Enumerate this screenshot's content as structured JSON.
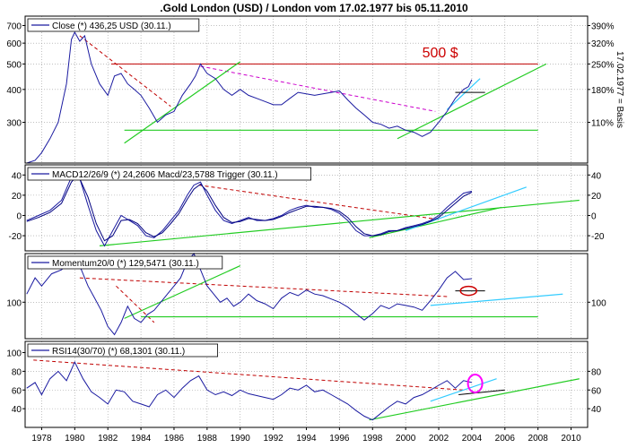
{
  "title": ".Gold London (USD) / London vom 17.02.1977 bis 05.11.2010",
  "x_axis": {
    "ticks": [
      "1978",
      "1980",
      "1982",
      "1984",
      "1986",
      "1988",
      "1990",
      "1992",
      "1994",
      "1996",
      "1998",
      "2000",
      "2002",
      "2004",
      "2006",
      "2008",
      "2010"
    ],
    "range": [
      1977.0,
      2011.0
    ]
  },
  "colors": {
    "price_line": "#1a1aa0",
    "trigger_line": "#000080",
    "red_dash": "#c00000",
    "magenta_dash": "#cc00cc",
    "green": "#22cc22",
    "cyan": "#33ccff",
    "grid": "#999999",
    "frame": "#000000",
    "annotation_red": "#cc0000",
    "annotation_magenta": "#ff00ff"
  },
  "chart_data": [
    {
      "type": "line",
      "panel": "price",
      "legend": "Close (*) 436,25 USD (30.11.)",
      "annotation": "500 $",
      "left_ticks": [
        "700",
        "600",
        "500",
        "400",
        "300"
      ],
      "left_tick_values": [
        700,
        600,
        500,
        400,
        300
      ],
      "right_ticks": [
        "390%",
        "320%",
        "250%",
        "180%",
        "110%"
      ],
      "right_tick_values": [
        700,
        600,
        500,
        400,
        300
      ],
      "right_axis_label": "17.02.1977 = Basis",
      "y_scale": "log",
      "ylim": [
        210,
        760
      ],
      "series": [
        {
          "x": [
            1977.1,
            1977.6,
            1978.0,
            1978.5,
            1979.0,
            1979.5,
            1979.8,
            1980.0,
            1980.3,
            1980.6,
            1981.0,
            1981.5,
            1982.0,
            1982.4,
            1982.8,
            1983.2,
            1983.6,
            1984.0,
            1984.5,
            1985.0,
            1985.5,
            1986.0,
            1986.5,
            1987.0,
            1987.3,
            1987.6,
            1988.0,
            1988.5,
            1989.0,
            1989.5,
            1990.0,
            1990.5,
            1991.0,
            1991.5,
            1992.0,
            1992.5,
            1993.0,
            1993.5,
            1994.0,
            1994.5,
            1995.0,
            1995.5,
            1996.0,
            1996.5,
            1997.0,
            1997.5,
            1998.0,
            1998.5,
            1999.0,
            1999.5,
            2000.0,
            2000.5,
            2001.0,
            2001.5,
            2002.0,
            2002.5,
            2003.0,
            2003.5,
            2003.8,
            2004.0
          ],
          "values": [
            210,
            215,
            230,
            260,
            300,
            420,
            620,
            660,
            610,
            640,
            500,
            420,
            380,
            450,
            460,
            420,
            400,
            380,
            340,
            300,
            320,
            330,
            380,
            420,
            450,
            500,
            460,
            440,
            400,
            380,
            400,
            380,
            370,
            360,
            350,
            350,
            370,
            390,
            385,
            380,
            385,
            390,
            395,
            365,
            340,
            320,
            300,
            295,
            285,
            290,
            280,
            275,
            265,
            275,
            300,
            330,
            370,
            400,
            410,
            436
          ]
        }
      ],
      "trendlines": [
        {
          "style": "red_dash",
          "points": [
            [
              1980.3,
              640
            ],
            [
              1985.8,
              345
            ]
          ]
        },
        {
          "style": "red_solid",
          "points": [
            [
              1982.2,
              500
            ],
            [
              2008.0,
              500
            ]
          ]
        },
        {
          "style": "magenta_dash",
          "points": [
            [
              1987.6,
              490
            ],
            [
              2001.8,
              330
            ]
          ]
        },
        {
          "style": "green",
          "points": [
            [
              1983.0,
              250
            ],
            [
              1990.0,
              510
            ]
          ]
        },
        {
          "style": "green",
          "points": [
            [
              1983.0,
              280
            ],
            [
              2008.0,
              280
            ]
          ]
        },
        {
          "style": "green",
          "points": [
            [
              1999.5,
              260
            ],
            [
              2008.5,
              500
            ]
          ]
        },
        {
          "style": "cyan",
          "points": [
            [
              2002.5,
              335
            ],
            [
              2004.5,
              440
            ]
          ]
        },
        {
          "style": "black",
          "points": [
            [
              2003.0,
              390
            ],
            [
              2004.8,
              390
            ]
          ]
        }
      ]
    },
    {
      "type": "line",
      "panel": "macd",
      "legend": "MACD12/26/9 (*) 24,2606 Macd/23,5788 Trigger (30.11.)",
      "left_ticks": [
        "40",
        "20",
        "0",
        "-20"
      ],
      "left_tick_values": [
        40,
        20,
        0,
        -20
      ],
      "right_ticks": [
        "40",
        "20",
        "0",
        "-20"
      ],
      "right_tick_values": [
        40,
        20,
        0,
        -20
      ],
      "ylim": [
        -35,
        50
      ],
      "series": [
        {
          "x": [
            1977.1,
            1977.8,
            1978.5,
            1979.2,
            1979.8,
            1980.2,
            1980.8,
            1981.3,
            1981.8,
            1982.3,
            1982.8,
            1983.3,
            1983.8,
            1984.3,
            1984.8,
            1985.3,
            1985.8,
            1986.3,
            1986.8,
            1987.2,
            1987.6,
            1988.0,
            1988.5,
            1989.0,
            1989.5,
            1990.0,
            1990.5,
            1991.0,
            1991.5,
            1992.0,
            1992.5,
            1993.0,
            1993.5,
            1994.0,
            1994.5,
            1995.0,
            1995.5,
            1996.0,
            1996.5,
            1997.0,
            1997.5,
            1998.0,
            1998.5,
            1999.0,
            1999.5,
            2000.0,
            2000.5,
            2001.0,
            2001.5,
            2002.0,
            2002.5,
            2003.0,
            2003.5,
            2004.0
          ],
          "values": [
            -5,
            0,
            5,
            15,
            38,
            42,
            10,
            -15,
            -30,
            -15,
            0,
            -5,
            -10,
            -20,
            -22,
            -15,
            -5,
            5,
            20,
            30,
            33,
            20,
            5,
            -5,
            -8,
            -5,
            -2,
            -5,
            -5,
            -3,
            0,
            5,
            8,
            10,
            8,
            8,
            6,
            2,
            -5,
            -15,
            -20,
            -20,
            -18,
            -15,
            -15,
            -12,
            -10,
            -8,
            -5,
            0,
            8,
            15,
            22,
            24
          ]
        },
        {
          "x": [
            1977.1,
            1977.8,
            1978.5,
            1979.2,
            1979.8,
            1980.2,
            1980.8,
            1981.3,
            1981.8,
            1982.3,
            1982.8,
            1983.3,
            1983.8,
            1984.3,
            1984.8,
            1985.3,
            1985.8,
            1986.3,
            1986.8,
            1987.2,
            1987.6,
            1988.0,
            1988.5,
            1989.0,
            1989.5,
            1990.0,
            1990.5,
            1991.0,
            1991.5,
            1992.0,
            1992.5,
            1993.0,
            1993.5,
            1994.0,
            1994.5,
            1995.0,
            1995.5,
            1996.0,
            1996.5,
            1997.0,
            1997.5,
            1998.0,
            1998.5,
            1999.0,
            1999.5,
            2000.0,
            2000.5,
            2001.0,
            2001.5,
            2002.0,
            2002.5,
            2003.0,
            2003.5,
            2004.0
          ],
          "values": [
            -6,
            -2,
            3,
            12,
            33,
            40,
            18,
            -8,
            -25,
            -20,
            -5,
            -4,
            -8,
            -17,
            -21,
            -17,
            -8,
            2,
            16,
            26,
            31,
            24,
            10,
            -2,
            -7,
            -6,
            -3,
            -4,
            -5,
            -4,
            -1,
            3,
            6,
            9,
            9,
            8,
            7,
            4,
            -2,
            -11,
            -18,
            -20,
            -19,
            -16,
            -15,
            -13,
            -11,
            -9,
            -6,
            -2,
            5,
            12,
            19,
            23
          ]
        }
      ],
      "trendlines": [
        {
          "style": "red_dash",
          "points": [
            [
              1987.5,
              30
            ],
            [
              2002.0,
              -4
            ]
          ]
        },
        {
          "style": "green",
          "points": [
            [
              1981.5,
              -30
            ],
            [
              2010.5,
              15
            ]
          ]
        },
        {
          "style": "green",
          "points": [
            [
              1997.8,
              -22
            ],
            [
              2005.8,
              8
            ]
          ]
        },
        {
          "style": "cyan",
          "points": [
            [
              2000.0,
              -15
            ],
            [
              2007.3,
              28
            ]
          ]
        }
      ]
    },
    {
      "type": "line",
      "panel": "momentum",
      "legend": "Momentum20/0 (*) 129,5471 (30.11.)",
      "left_ticks": [
        "100"
      ],
      "left_tick_values": [
        100
      ],
      "right_ticks": [
        "100"
      ],
      "right_tick_values": [
        100
      ],
      "ylim": [
        55,
        160
      ],
      "series": [
        {
          "x": [
            1977.1,
            1977.6,
            1978.0,
            1978.6,
            1979.2,
            1979.7,
            1980.0,
            1980.4,
            1980.8,
            1981.2,
            1981.6,
            1982.0,
            1982.4,
            1982.8,
            1983.2,
            1983.6,
            1984.0,
            1984.4,
            1984.8,
            1985.2,
            1985.6,
            1986.0,
            1986.4,
            1986.8,
            1987.2,
            1987.6,
            1988.0,
            1988.4,
            1988.8,
            1989.2,
            1989.6,
            1990.0,
            1990.5,
            1991.0,
            1991.5,
            1992.0,
            1992.5,
            1993.0,
            1993.5,
            1994.0,
            1994.5,
            1995.0,
            1995.5,
            1996.0,
            1996.5,
            1997.0,
            1997.5,
            1998.0,
            1998.5,
            1999.0,
            1999.5,
            2000.0,
            2000.5,
            2001.0,
            2001.5,
            2002.0,
            2002.5,
            2003.0,
            2003.5,
            2004.0
          ],
          "values": [
            110,
            130,
            120,
            135,
            140,
            150,
            155,
            140,
            120,
            105,
            90,
            70,
            60,
            75,
            95,
            80,
            75,
            85,
            90,
            100,
            110,
            120,
            130,
            150,
            160,
            140,
            120,
            110,
            100,
            105,
            95,
            100,
            110,
            102,
            98,
            92,
            105,
            112,
            108,
            115,
            110,
            108,
            104,
            100,
            94,
            86,
            78,
            86,
            96,
            92,
            98,
            96,
            94,
            90,
            102,
            115,
            130,
            138,
            128,
            129
          ]
        }
      ],
      "trendlines": [
        {
          "style": "red_dash",
          "points": [
            [
              1980.3,
              130
            ],
            [
              2002.5,
              107
            ]
          ]
        },
        {
          "style": "red_dash",
          "points": [
            [
              1982.5,
              120
            ],
            [
              1984.8,
              75
            ]
          ]
        },
        {
          "style": "green",
          "points": [
            [
              1983.0,
              80
            ],
            [
              1990.0,
              145
            ]
          ]
        },
        {
          "style": "green",
          "points": [
            [
              1984.0,
              82
            ],
            [
              2008.0,
              82
            ]
          ]
        },
        {
          "style": "cyan",
          "points": [
            [
              2001.5,
              96
            ],
            [
              2009.5,
              110
            ]
          ]
        },
        {
          "style": "black",
          "points": [
            [
              2003.0,
              114
            ],
            [
              2004.8,
              114
            ]
          ]
        }
      ]
    },
    {
      "type": "line",
      "panel": "rsi",
      "legend": "RSI14(30/70) (*) 68,1301 (30.11.)",
      "left_ticks": [
        "100",
        "80",
        "60",
        "40"
      ],
      "left_tick_values": [
        100,
        80,
        60,
        40
      ],
      "right_ticks": [
        "80",
        "60",
        "40"
      ],
      "right_tick_values": [
        80,
        60,
        40
      ],
      "ylim": [
        20,
        112
      ],
      "series": [
        {
          "x": [
            1977.1,
            1977.6,
            1978.0,
            1978.5,
            1979.0,
            1979.5,
            1980.0,
            1980.5,
            1981.0,
            1981.5,
            1982.0,
            1982.5,
            1983.0,
            1983.5,
            1984.0,
            1984.5,
            1985.0,
            1985.5,
            1986.0,
            1986.5,
            1987.0,
            1987.5,
            1988.0,
            1988.5,
            1989.0,
            1989.5,
            1990.0,
            1990.5,
            1991.0,
            1991.5,
            1992.0,
            1992.5,
            1993.0,
            1993.5,
            1994.0,
            1994.5,
            1995.0,
            1995.5,
            1996.0,
            1996.5,
            1997.0,
            1997.5,
            1998.0,
            1998.5,
            1999.0,
            1999.5,
            2000.0,
            2000.5,
            2001.0,
            2001.5,
            2002.0,
            2002.5,
            2003.0,
            2003.5,
            2004.0
          ],
          "values": [
            62,
            68,
            55,
            72,
            80,
            70,
            90,
            72,
            58,
            52,
            45,
            60,
            58,
            48,
            45,
            42,
            55,
            60,
            52,
            62,
            70,
            75,
            60,
            55,
            58,
            54,
            60,
            56,
            54,
            52,
            50,
            55,
            62,
            60,
            65,
            58,
            60,
            55,
            50,
            45,
            38,
            32,
            28,
            35,
            42,
            48,
            45,
            52,
            55,
            60,
            65,
            70,
            62,
            70,
            68
          ]
        }
      ],
      "trendlines": [
        {
          "style": "red_dash",
          "points": [
            [
              1977.5,
              92
            ],
            [
              2003.5,
              60
            ]
          ]
        },
        {
          "style": "green",
          "points": [
            [
              1997.8,
              28
            ],
            [
              2010.5,
              72
            ]
          ]
        },
        {
          "style": "cyan",
          "points": [
            [
              2001.5,
              48
            ],
            [
              2005.5,
              72
            ]
          ]
        },
        {
          "style": "black",
          "points": [
            [
              2003.2,
              55
            ],
            [
              2006.0,
              60
            ]
          ]
        }
      ]
    }
  ]
}
